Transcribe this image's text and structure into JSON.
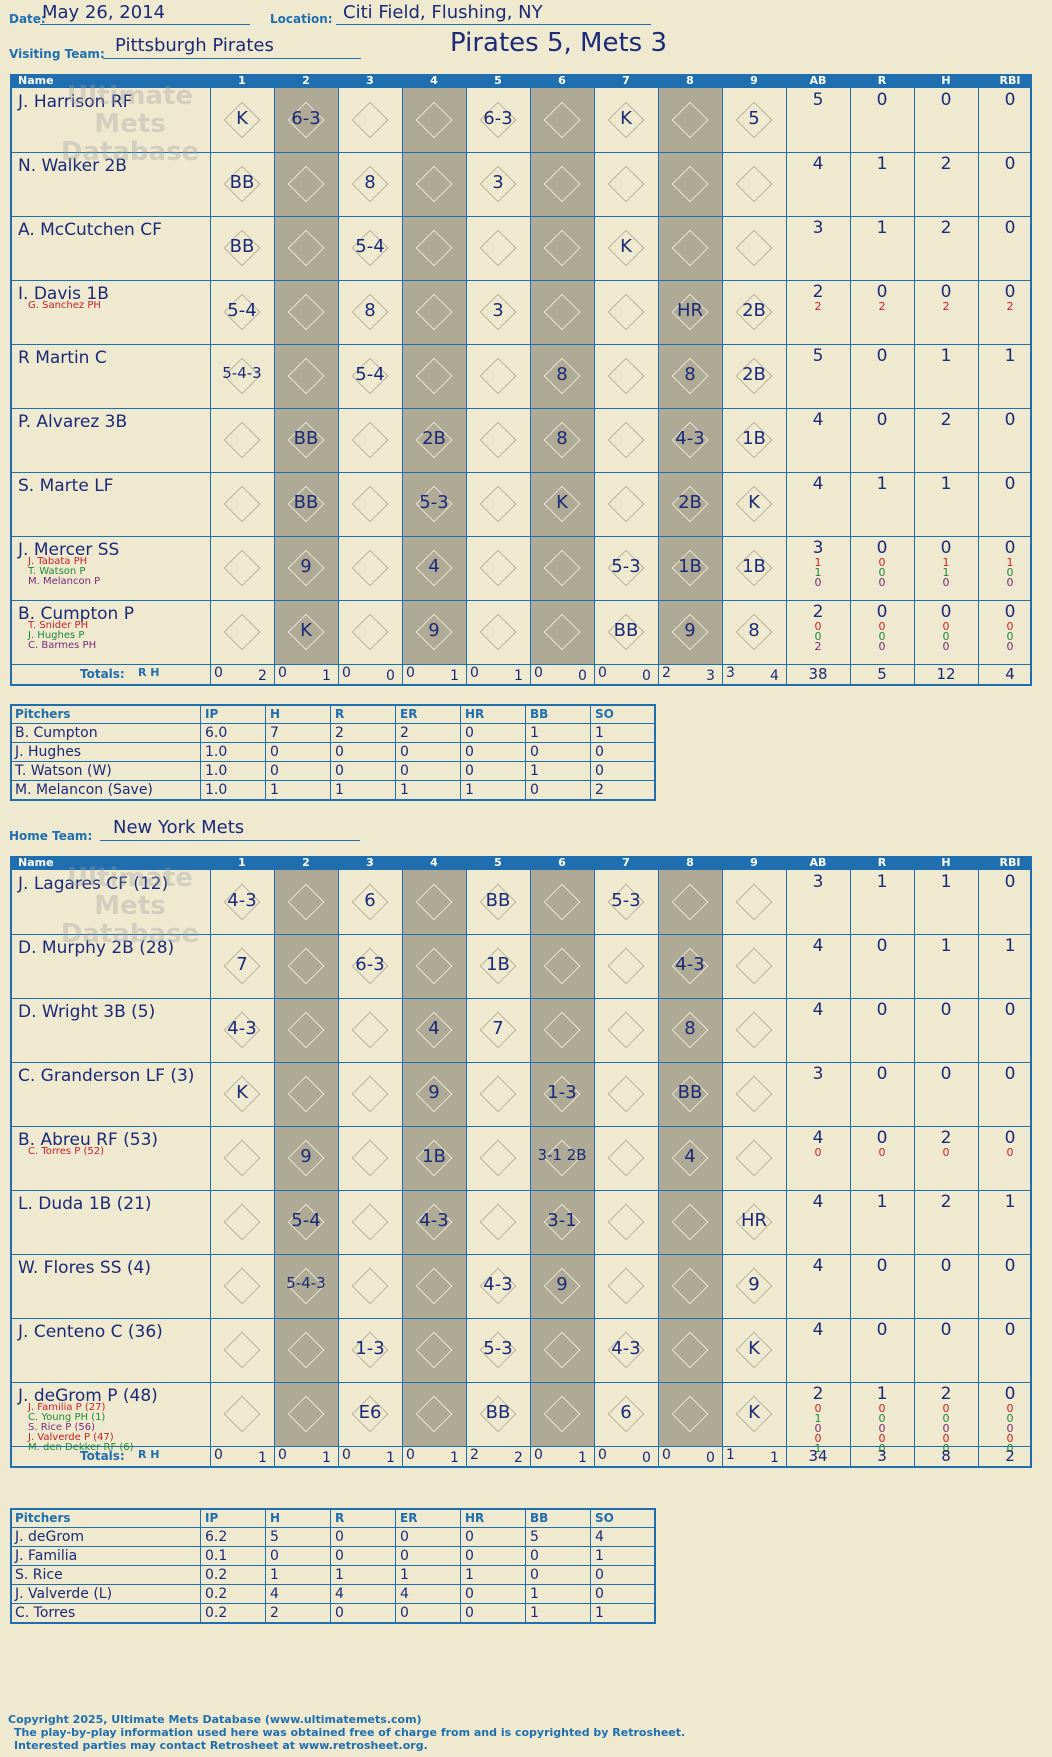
{
  "header": {
    "date_label": "Date:",
    "date": "May 26, 2014",
    "location_label": "Location:",
    "location": "Citi Field, Flushing, NY",
    "visiting_label": "Visiting Team:",
    "visiting_team": "Pittsburgh Pirates",
    "result": "Pirates 5, Mets 3",
    "home_label": "Home Team:",
    "home_team": "New York Mets"
  },
  "columns": {
    "name": "Name",
    "innings": [
      "1",
      "2",
      "3",
      "4",
      "5",
      "6",
      "7",
      "8",
      "9"
    ],
    "stats": [
      "AB",
      "R",
      "H",
      "RBI"
    ]
  },
  "totals_label": "Totals:",
  "visitors": {
    "rows": [
      {
        "name": "J. Harrison RF",
        "subs": [],
        "stats": [
          "5",
          "0",
          "0",
          "0"
        ],
        "plays": [
          "K",
          "6-3",
          "",
          "",
          "6-3",
          "",
          "K",
          "",
          "5"
        ]
      },
      {
        "name": "N. Walker 2B",
        "subs": [],
        "stats": [
          "4",
          "1",
          "2",
          "0"
        ],
        "plays": [
          "BB",
          "",
          "8",
          "",
          "3",
          "",
          "",
          "",
          ""
        ]
      },
      {
        "name": "A. McCutchen CF",
        "subs": [],
        "stats": [
          "3",
          "1",
          "2",
          "0"
        ],
        "plays": [
          "BB",
          "",
          "5-4",
          "",
          "",
          "",
          "K",
          "",
          ""
        ]
      },
      {
        "name": "I. Davis 1B",
        "subs": [
          {
            "name": "G. Sanchez PH",
            "stats": [
              "2",
              "2",
              "2",
              "2"
            ]
          }
        ],
        "stats": [
          "2",
          "0",
          "0",
          "0"
        ],
        "plays": [
          "5-4",
          "",
          "8",
          "",
          "3",
          "",
          "",
          "HR",
          "2B"
        ]
      },
      {
        "name": "R Martin C",
        "subs": [],
        "stats": [
          "5",
          "0",
          "1",
          "1"
        ],
        "plays": [
          "5-4-3",
          "",
          "5-4",
          "",
          "",
          "8",
          "",
          "8",
          "2B"
        ]
      },
      {
        "name": "P. Alvarez 3B",
        "subs": [],
        "stats": [
          "4",
          "0",
          "2",
          "0"
        ],
        "plays": [
          "",
          "BB",
          "",
          "2B",
          "",
          "8",
          "",
          "4-3",
          "1B"
        ]
      },
      {
        "name": "S. Marte LF",
        "subs": [],
        "stats": [
          "4",
          "1",
          "1",
          "0"
        ],
        "plays": [
          "",
          "BB",
          "",
          "5-3",
          "",
          "K",
          "",
          "2B",
          "K"
        ]
      },
      {
        "name": "J. Mercer SS",
        "subs": [
          {
            "name": "J. Tabata PH",
            "stats": [
              "1",
              "0",
              "1",
              "1"
            ]
          },
          {
            "name": "T. Watson P",
            "stats": [
              "1",
              "0",
              "1",
              "0"
            ]
          },
          {
            "name": "M. Melancon P",
            "stats": [
              "0",
              "0",
              "0",
              "0"
            ]
          }
        ],
        "stats": [
          "3",
          "0",
          "0",
          "0"
        ],
        "plays": [
          "",
          "9",
          "",
          "4",
          "",
          "",
          "5-3",
          "1B",
          "1B"
        ]
      },
      {
        "name": "B. Cumpton P",
        "subs": [
          {
            "name": "T. Snider PH",
            "stats": [
              "0",
              "0",
              "0",
              "0"
            ]
          },
          {
            "name": "J. Hughes P",
            "stats": [
              "0",
              "0",
              "0",
              "0"
            ]
          },
          {
            "name": "C. Barmes PH",
            "stats": [
              "2",
              "0",
              "0",
              "0"
            ]
          }
        ],
        "stats": [
          "2",
          "0",
          "0",
          "0"
        ],
        "plays": [
          "",
          "K",
          "",
          "9",
          "",
          "",
          "BB",
          "9",
          "8"
        ]
      }
    ],
    "inning_totals": [
      [
        "0",
        "2"
      ],
      [
        "0",
        "1"
      ],
      [
        "0",
        "0"
      ],
      [
        "0",
        "1"
      ],
      [
        "0",
        "1"
      ],
      [
        "0",
        "0"
      ],
      [
        "0",
        "0"
      ],
      [
        "2",
        "3"
      ],
      [
        "3",
        "4"
      ]
    ],
    "totals": [
      "38",
      "5",
      "12",
      "4"
    ],
    "notes": [
      "deGrom",
      "Familia",
      "Rice",
      "Torres",
      "Valverde"
    ]
  },
  "visitor_pitching": {
    "headers": [
      "Pitchers",
      "IP",
      "H",
      "R",
      "ER",
      "HR",
      "BB",
      "SO"
    ],
    "rows": [
      [
        "B. Cumpton",
        "6.0",
        "7",
        "2",
        "2",
        "0",
        "1",
        "1"
      ],
      [
        "J. Hughes",
        "1.0",
        "0",
        "0",
        "0",
        "0",
        "0",
        "0"
      ],
      [
        "T. Watson (W)",
        "1.0",
        "0",
        "0",
        "0",
        "0",
        "1",
        "0"
      ],
      [
        "M. Melancon (Save)",
        "1.0",
        "1",
        "1",
        "1",
        "1",
        "0",
        "2"
      ]
    ]
  },
  "home": {
    "rows": [
      {
        "name": "J. Lagares CF (12)",
        "subs": [],
        "stats": [
          "3",
          "1",
          "1",
          "0"
        ],
        "plays": [
          "4-3",
          "",
          "6",
          "",
          "BB",
          "",
          "5-3",
          "",
          ""
        ]
      },
      {
        "name": "D. Murphy 2B (28)",
        "subs": [],
        "stats": [
          "4",
          "0",
          "1",
          "1"
        ],
        "plays": [
          "7",
          "",
          "6-3",
          "",
          "1B",
          "",
          "",
          "4-3",
          ""
        ]
      },
      {
        "name": "D. Wright 3B (5)",
        "subs": [],
        "stats": [
          "4",
          "0",
          "0",
          "0"
        ],
        "plays": [
          "4-3",
          "",
          "",
          "4",
          "7",
          "",
          "",
          "8",
          ""
        ]
      },
      {
        "name": "C. Granderson LF (3)",
        "subs": [],
        "stats": [
          "3",
          "0",
          "0",
          "0"
        ],
        "plays": [
          "K",
          "",
          "",
          "9",
          "",
          "1-3",
          "",
          "BB",
          ""
        ]
      },
      {
        "name": "B. Abreu RF (53)",
        "subs": [
          {
            "name": "C. Torres P (52)",
            "stats": [
              "0",
              "0",
              "0",
              "0"
            ]
          }
        ],
        "stats": [
          "4",
          "0",
          "2",
          "0"
        ],
        "plays": [
          "",
          "9",
          "",
          "1B",
          "",
          "3-1 2B",
          "",
          "4",
          ""
        ]
      },
      {
        "name": "L. Duda 1B (21)",
        "subs": [],
        "stats": [
          "4",
          "1",
          "2",
          "1"
        ],
        "plays": [
          "",
          "5-4",
          "",
          "4-3",
          "",
          "3-1",
          "",
          "",
          "HR"
        ]
      },
      {
        "name": "W. Flores SS (4)",
        "subs": [],
        "stats": [
          "4",
          "0",
          "0",
          "0"
        ],
        "plays": [
          "",
          "5-4-3",
          "",
          "",
          "4-3",
          "9",
          "",
          "",
          "9"
        ]
      },
      {
        "name": "J. Centeno C (36)",
        "subs": [],
        "stats": [
          "4",
          "0",
          "0",
          "0"
        ],
        "plays": [
          "",
          "",
          "1-3",
          "",
          "5-3",
          "",
          "4-3",
          "",
          "K"
        ]
      },
      {
        "name": "J. deGrom P (48)",
        "subs": [
          {
            "name": "J. Familia P (27)",
            "stats": [
              "0",
              "0",
              "0",
              "0"
            ]
          },
          {
            "name": "C. Young PH (1)",
            "stats": [
              "1",
              "0",
              "0",
              "0"
            ]
          },
          {
            "name": "S. Rice P (56)",
            "stats": [
              "0",
              "0",
              "0",
              "0"
            ]
          },
          {
            "name": "J. Valverde P (47)",
            "stats": [
              "0",
              "0",
              "0",
              "0"
            ]
          },
          {
            "name": "M. den Dekker RF (6)",
            "stats": [
              "1",
              "0",
              "0",
              "0"
            ]
          }
        ],
        "stats": [
          "2",
          "1",
          "2",
          "0"
        ],
        "plays": [
          "",
          "",
          "E6",
          "",
          "BB",
          "",
          "6",
          "",
          "K"
        ]
      }
    ],
    "inning_totals": [
      [
        "0",
        "1"
      ],
      [
        "0",
        "1"
      ],
      [
        "0",
        "1"
      ],
      [
        "0",
        "1"
      ],
      [
        "2",
        "2"
      ],
      [
        "0",
        "1"
      ],
      [
        "0",
        "0"
      ],
      [
        "0",
        "0"
      ],
      [
        "1",
        "1"
      ]
    ],
    "totals": [
      "34",
      "3",
      "8",
      "2"
    ],
    "notes": [
      "Cumpton",
      "Watson",
      "Melancon",
      "Hughes"
    ]
  },
  "home_pitching": {
    "headers": [
      "Pitchers",
      "IP",
      "H",
      "R",
      "ER",
      "HR",
      "BB",
      "SO"
    ],
    "rows": [
      [
        "J. deGrom",
        "6.2",
        "5",
        "0",
        "0",
        "0",
        "5",
        "4"
      ],
      [
        "J. Familia",
        "0.1",
        "0",
        "0",
        "0",
        "0",
        "0",
        "1"
      ],
      [
        "S. Rice",
        "0.2",
        "1",
        "1",
        "1",
        "1",
        "0",
        "0"
      ],
      [
        "J. Valverde (L)",
        "0.2",
        "4",
        "4",
        "4",
        "0",
        "1",
        "0"
      ],
      [
        "C. Torres",
        "0.2",
        "2",
        "0",
        "0",
        "0",
        "1",
        "1"
      ]
    ]
  },
  "watermark": "Ultimate Mets Database",
  "footer": [
    "Copyright 2025, Ultimate Mets Database (www.ultimatemets.com)",
    "The play-by-play information used here was obtained free of charge from and is copyrighted by Retrosheet.",
    "Interested parties may contact Retrosheet at www.retrosheet.org."
  ],
  "colors": {
    "blue": "#1f6fb0",
    "ink": "#1b2a78",
    "red": "#c8202a",
    "green": "#1f8a3a",
    "shade": "#aeaa95",
    "paper": "#efe9cf"
  }
}
